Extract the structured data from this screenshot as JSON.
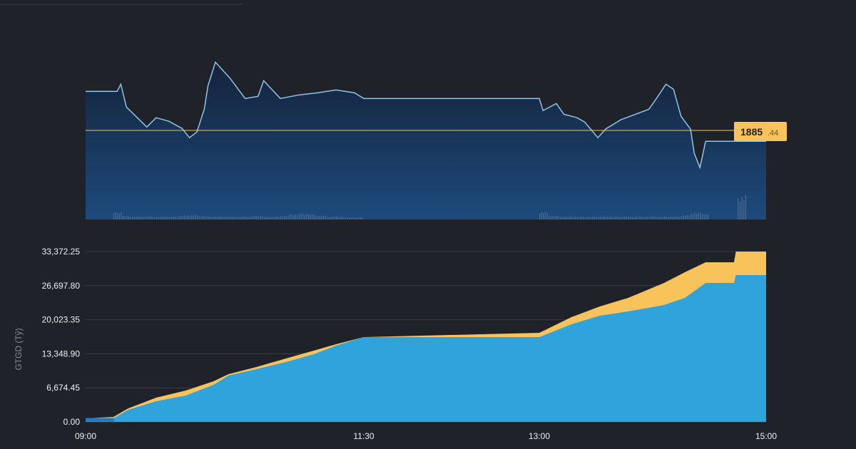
{
  "colors": {
    "background": "#1f2229",
    "price_line": "#8ec5e8",
    "reference_line": "#f2c94c",
    "series_blue": "#2ea3dc",
    "series_yellow": "#f8c35a",
    "grid": "#3a3d45",
    "price_fill_top": "#15233a",
    "price_fill_bottom": "#1d4a7d"
  },
  "chart_data": [
    {
      "type": "line",
      "reference_price": {
        "whole": "1885",
        "decimals": ".44",
        "value": 1885.44
      },
      "x": [
        "09:00",
        "09:17",
        "09:19",
        "09:22",
        "09:33",
        "09:38",
        "09:45",
        "09:52",
        "09:56",
        "10:00",
        "10:04",
        "10:06",
        "10:10",
        "10:18",
        "10:26",
        "10:33",
        "10:36",
        "10:45",
        "10:55",
        "11:05",
        "11:15",
        "11:25",
        "11:30",
        "13:00",
        "13:02",
        "13:09",
        "13:13",
        "13:20",
        "13:24",
        "13:31",
        "13:35",
        "13:43",
        "13:50",
        "13:58",
        "14:02",
        "14:07",
        "14:11",
        "14:15",
        "14:20",
        "14:22",
        "14:25",
        "14:28",
        "15:00"
      ],
      "price": [
        1896.4,
        1896.4,
        1898.4,
        1892,
        1886.4,
        1889,
        1888,
        1886,
        1883.4,
        1885,
        1891.4,
        1898,
        1904.6,
        1900,
        1894.4,
        1895,
        1899.4,
        1894.4,
        1895.4,
        1896,
        1896.8,
        1896,
        1894.4,
        1894.4,
        1891,
        1893,
        1890,
        1889,
        1887.8,
        1883.4,
        1885.8,
        1888.4,
        1889.8,
        1891.4,
        1894.4,
        1898.4,
        1897,
        1889.4,
        1885.8,
        1879,
        1875,
        1882.4,
        1882.4
      ],
      "volume_morning_5min": [
        0,
        0,
        0,
        9,
        4,
        3,
        3,
        3,
        3,
        3,
        4,
        5,
        4,
        3,
        3,
        3,
        3,
        3,
        4,
        3,
        3,
        4,
        6,
        7,
        6,
        4,
        3,
        3,
        2,
        2
      ],
      "volume_afternoon_5min": [
        9,
        4,
        3,
        3,
        3,
        3,
        3,
        3,
        3,
        3,
        3,
        3,
        3,
        3,
        3,
        5,
        8,
        7,
        0,
        0,
        0,
        30,
        0,
        0
      ]
    },
    {
      "type": "area",
      "ylabel": "GTGD (Tỷ)",
      "yticks": [
        "0.00",
        "6,674.45",
        "13,348.90",
        "20,023.35",
        "26,697.80",
        "33,372.25"
      ],
      "ylim": [
        0,
        33372.25
      ],
      "xticks": [
        "09:00",
        "11:30",
        "13:00",
        "15:00"
      ],
      "grid": true,
      "series": [
        {
          "color": "yellow",
          "x": [
            "09:00",
            "09:15",
            "09:23",
            "09:38",
            "09:54",
            "10:09",
            "10:17",
            "10:32",
            "10:48",
            "11:03",
            "11:15",
            "11:30",
            "13:00",
            "13:17",
            "13:32",
            "13:47",
            "14:06",
            "14:17",
            "14:28",
            "14:43",
            "14:44",
            "15:00"
          ],
          "values": [
            698,
            977,
            2653,
            4748,
            6144,
            7959,
            9355,
            10752,
            12427,
            13963,
            15220,
            16616,
            17454,
            20526,
            22620,
            24296,
            27228,
            29322,
            31277,
            31277,
            33372,
            33372
          ]
        },
        {
          "color": "blue",
          "x": [
            "09:00",
            "09:15",
            "09:23",
            "09:38",
            "09:54",
            "10:09",
            "10:17",
            "10:32",
            "10:48",
            "11:03",
            "11:15",
            "11:30",
            "13:00",
            "13:17",
            "13:32",
            "13:47",
            "14:06",
            "14:17",
            "14:28",
            "14:43",
            "14:44",
            "15:00"
          ],
          "values": [
            698,
            698,
            2374,
            4049,
            5166,
            7261,
            9076,
            10333,
            11729,
            13265,
            14940,
            16616,
            16616,
            19129,
            20805,
            21643,
            22899,
            24296,
            27228,
            27228,
            28764,
            28764
          ]
        }
      ]
    }
  ]
}
